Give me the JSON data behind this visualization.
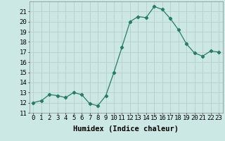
{
  "x": [
    0,
    1,
    2,
    3,
    4,
    5,
    6,
    7,
    8,
    9,
    10,
    11,
    12,
    13,
    14,
    15,
    16,
    17,
    18,
    19,
    20,
    21,
    22,
    23
  ],
  "y": [
    12,
    12.2,
    12.8,
    12.7,
    12.5,
    13.0,
    12.8,
    11.9,
    11.7,
    12.7,
    15.0,
    17.5,
    20.0,
    20.5,
    20.4,
    21.5,
    21.2,
    20.3,
    19.2,
    17.8,
    16.9,
    16.6,
    17.1,
    17.0
  ],
  "xlabel": "Humidex (Indice chaleur)",
  "ylim": [
    11,
    22
  ],
  "xlim": [
    -0.5,
    23.5
  ],
  "yticks": [
    11,
    12,
    13,
    14,
    15,
    16,
    17,
    18,
    19,
    20,
    21
  ],
  "xtick_labels": [
    "0",
    "1",
    "2",
    "3",
    "4",
    "5",
    "6",
    "7",
    "8",
    "9",
    "10",
    "11",
    "12",
    "13",
    "14",
    "15",
    "16",
    "17",
    "18",
    "19",
    "20",
    "21",
    "22",
    "23"
  ],
  "line_color": "#2a7a6a",
  "marker": "D",
  "marker_size": 2.2,
  "bg_color": "#cce8e4",
  "grid_color": "#b8d0cc",
  "label_fontsize": 7.5,
  "tick_fontsize": 6.5
}
